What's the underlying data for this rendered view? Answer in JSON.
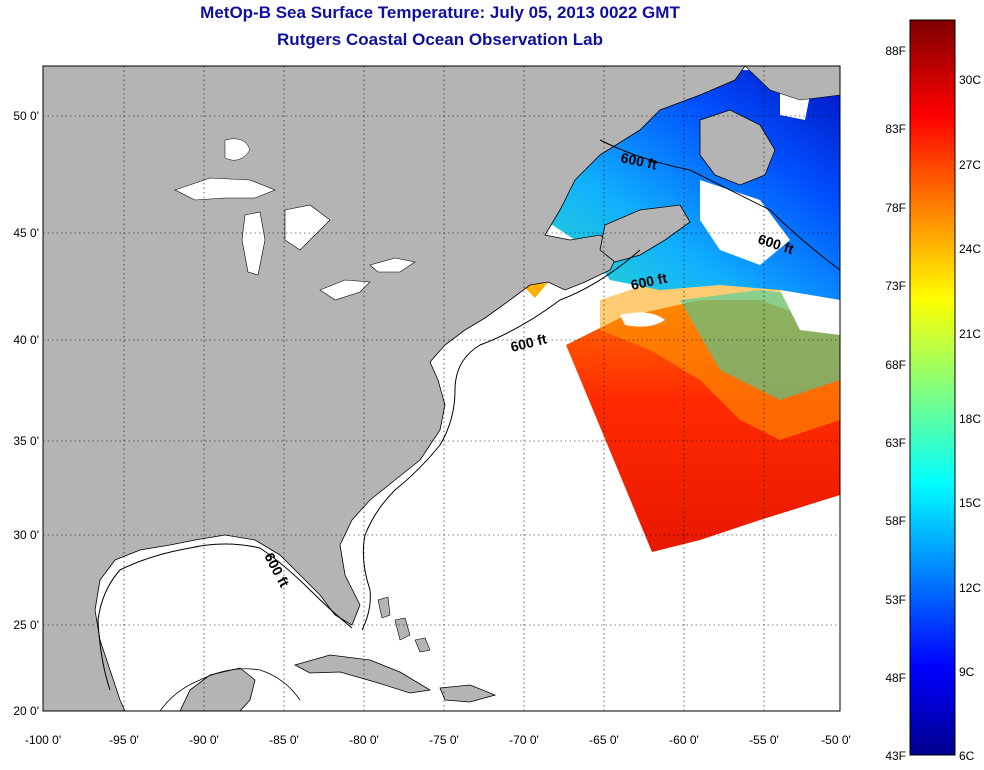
{
  "title": "MetOp-B Sea Surface Temperature:  July 05, 2013 0022 GMT",
  "subtitle": "Rutgers Coastal Ocean Observation Lab",
  "map": {
    "lat_ticks": [
      "50 0'",
      "45 0'",
      "40 0'",
      "35 0'",
      "30 0'",
      "25 0'",
      "20 0'"
    ],
    "lon_ticks": [
      "-100 0'",
      "-95 0'",
      "-90 0'",
      "-85 0'",
      "-80 0'",
      "-75 0'",
      "-70 0'",
      "-65 0'",
      "-60 0'",
      "-55 0'",
      "-50 0'"
    ],
    "contour_labels": [
      "600 ft",
      "600 ft",
      "600 ft",
      "600 ft",
      "600 ft"
    ],
    "colors": {
      "land": "#b4b4b4",
      "ocean_no_data": "#ffffff"
    }
  },
  "colorbar": {
    "f_labels": [
      "88F",
      "83F",
      "78F",
      "73F",
      "68F",
      "63F",
      "58F",
      "53F",
      "48F",
      "43F"
    ],
    "c_labels": [
      "30C",
      "27C",
      "24C",
      "21C",
      "18C",
      "15C",
      "12C",
      "9C",
      "6C"
    ],
    "colors": [
      "#7f0000",
      "#ff0000",
      "#ff8000",
      "#ffff00",
      "#80ff80",
      "#00ffff",
      "#0080ff",
      "#0000ff",
      "#00008f"
    ]
  }
}
